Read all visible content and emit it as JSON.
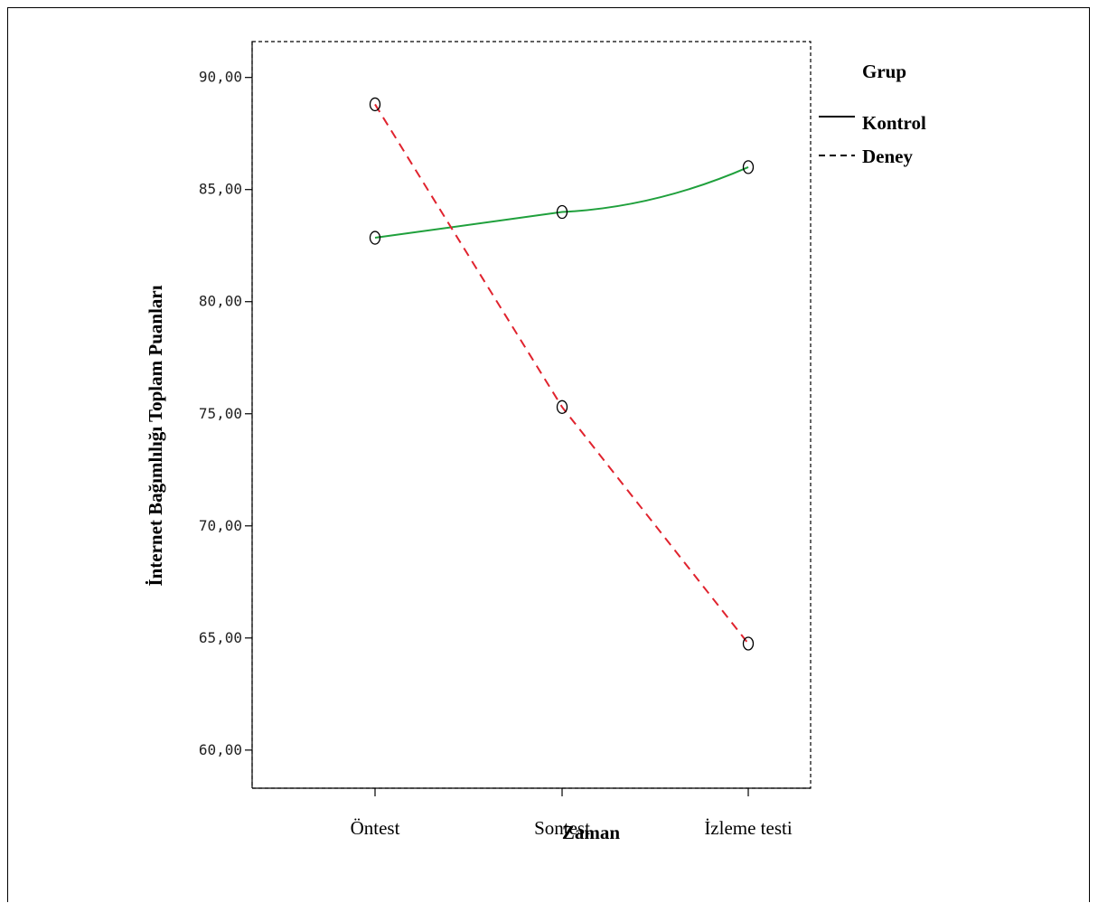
{
  "chart_data": {
    "type": "line",
    "xlabel": "Zaman",
    "ylabel": "İnternet Bağımlılığı Toplam Puanları",
    "categories": [
      "Öntest",
      "Sontest",
      "İzleme testi"
    ],
    "y_ticks": [
      "60,00",
      "65,00",
      "70,00",
      "75,00",
      "80,00",
      "85,00",
      "90,00"
    ],
    "y_tick_values": [
      60,
      65,
      70,
      75,
      80,
      85,
      90
    ],
    "ylim": [
      58.3,
      91.6
    ],
    "grid": false,
    "legend": {
      "title": "Grup",
      "placement": "right",
      "entries": [
        "Kontrol",
        "Deney"
      ]
    },
    "series": [
      {
        "name": "Kontrol",
        "values": [
          82.85,
          84.0,
          86.0
        ],
        "color": "#1fa03c",
        "dash": "solid",
        "marker": "circle"
      },
      {
        "name": "Deney",
        "values": [
          88.8,
          75.3,
          64.75
        ],
        "color": "#e0232e",
        "dash": "dashed",
        "marker": "circle"
      }
    ]
  }
}
